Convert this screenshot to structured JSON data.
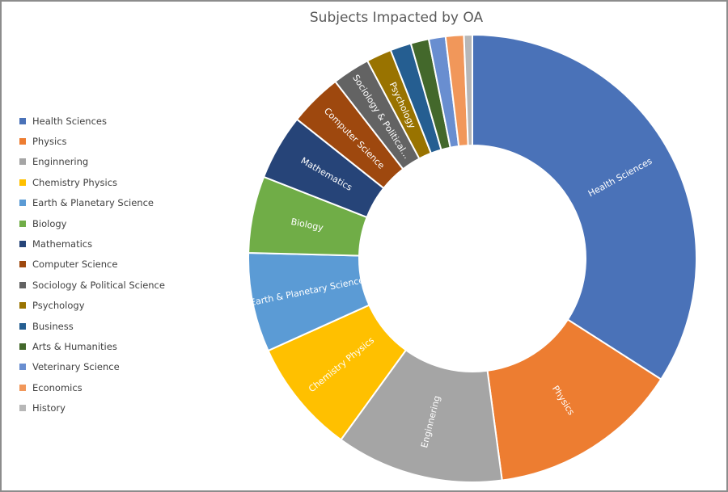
{
  "chart_data": {
    "type": "pie",
    "title": "Subjects Impacted by OA",
    "legend_position": "left",
    "categories": [
      "Health Sciences",
      "Physics",
      "Enginnering",
      "Chemistry Physics",
      "Earth & Planetary Science",
      "Biology",
      "Mathematics",
      "Computer Science",
      "Sociology & Political Science",
      "Psychology",
      "Business",
      "Arts & Humanities",
      "Veterinary Science",
      "Economics",
      "History"
    ],
    "values": [
      33.8,
      13.7,
      12.0,
      8.2,
      7.1,
      5.5,
      4.7,
      3.8,
      2.7,
      1.8,
      1.5,
      1.3,
      1.2,
      1.3,
      0.6
    ],
    "slice_labels": [
      "Health Sciences",
      "Physics",
      "Enginnering",
      "Chemistry Physics",
      "Earth & Planetary Science",
      "Biology",
      "Mathematics",
      "Computer Science",
      "Sociology & Political...",
      "Psychology",
      "",
      "",
      "",
      "",
      ""
    ],
    "colors": [
      "#4a72b8",
      "#ed7d31",
      "#a5a5a5",
      "#ffc000",
      "#5b9bd5",
      "#70ad47",
      "#264478",
      "#9e480e",
      "#636363",
      "#997300",
      "#255e91",
      "#43682b",
      "#698ed0",
      "#f1975a",
      "#b7b7b7"
    ]
  }
}
